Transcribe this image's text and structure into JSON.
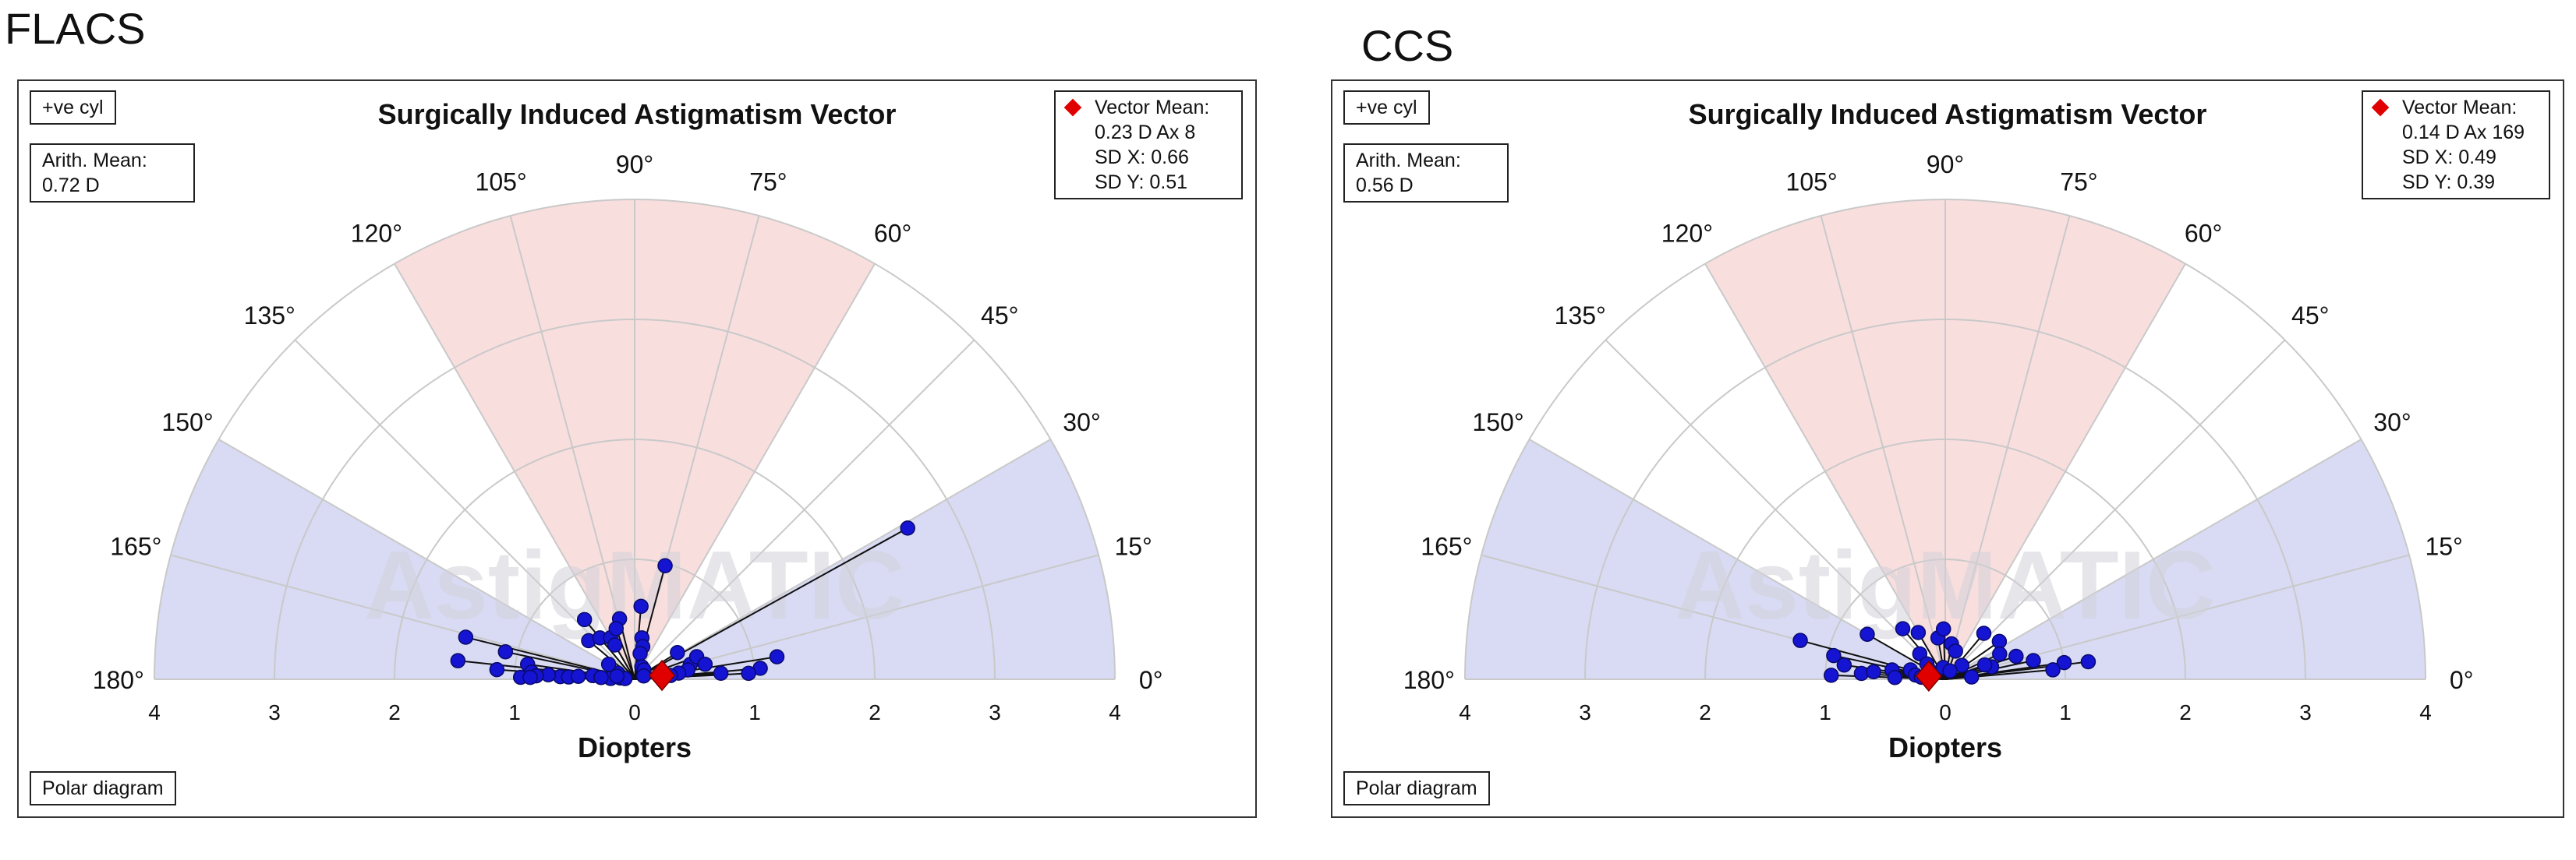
{
  "labels": {
    "left": "FLACS",
    "right": "CCS"
  },
  "colors": {
    "sector_vertical": "#f9dede",
    "sector_horizontal": "#d8dbf3",
    "grid": "#c9c9c9",
    "point": "#1414d2",
    "mean": "#e00000",
    "watermark": "#d2d2d8"
  },
  "chart_data": [
    {
      "type": "scatter",
      "projection": "polar-half",
      "title": "Surgically Induced Astigmatism Vector",
      "xlabel": "Diopters",
      "watermark": "AstigMATIC",
      "cyl_label": "+ve cyl",
      "arith_mean_label": "Arith. Mean:",
      "arith_mean_value": "0.72 D",
      "vector_mean_label": "Vector Mean:",
      "vector_mean_lines": [
        "0.23 D Ax 8",
        "SD X: 0.66",
        "SD Y: 0.51"
      ],
      "vector_mean_point": {
        "magnitude": 0.23,
        "axis": 8
      },
      "footer_label": "Polar diagram",
      "radius_max": 4,
      "x_ticks": [
        "4",
        "3",
        "2",
        "1",
        "0",
        "1",
        "2",
        "3",
        "4"
      ],
      "angle_ticks": [
        "0°",
        "15°",
        "30°",
        "45°",
        "60°",
        "75°",
        "90°",
        "105°",
        "120°",
        "135°",
        "150°",
        "165°",
        "180°"
      ],
      "points": [
        [
          0.42,
          32
        ],
        [
          0.98,
          75
        ],
        [
          0.61,
          85
        ],
        [
          0.35,
          80
        ],
        [
          0.28,
          76
        ],
        [
          0.22,
          78
        ],
        [
          0.12,
          60
        ],
        [
          0.11,
          45
        ],
        [
          0.08,
          20
        ],
        [
          0.48,
          15
        ],
        [
          0.55,
          20
        ],
        [
          0.6,
          12
        ],
        [
          0.45,
          10
        ],
        [
          0.37,
          8
        ],
        [
          0.3,
          6
        ],
        [
          0.15,
          160
        ],
        [
          0.25,
          150
        ],
        [
          0.5,
          140
        ],
        [
          0.45,
          130
        ],
        [
          0.4,
          120
        ],
        [
          1.45,
          166
        ],
        [
          1.1,
          168
        ],
        [
          0.9,
          172
        ],
        [
          1.48,
          174
        ],
        [
          1.15,
          176
        ],
        [
          0.35,
          175
        ],
        [
          0.2,
          178
        ],
        [
          0.12,
          175
        ],
        [
          0.62,
          178
        ],
        [
          0.72,
          177
        ],
        [
          0.86,
          176
        ],
        [
          0.95,
          179
        ],
        [
          0.55,
          178
        ],
        [
          0.82,
          178
        ],
        [
          0.87,
          179
        ],
        [
          0.47,
          177
        ],
        [
          0.28,
          177
        ],
        [
          0.08,
          176
        ],
        [
          0.15,
          170
        ],
        [
          1.2,
          9
        ],
        [
          1.05,
          5
        ],
        [
          0.95,
          3
        ],
        [
          0.72,
          4
        ],
        [
          2.6,
          29
        ],
        [
          0.33,
          120
        ],
        [
          0.52,
          104
        ],
        [
          0.45,
          110
        ],
        [
          0.65,
          130
        ]
      ]
    },
    {
      "type": "scatter",
      "projection": "polar-half",
      "title": "Surgically Induced Astigmatism Vector",
      "xlabel": "Diopters",
      "watermark": "AstigMATIC",
      "cyl_label": "+ve cyl",
      "arith_mean_label": "Arith. Mean:",
      "arith_mean_value": "0.56 D",
      "vector_mean_label": "Vector Mean:",
      "vector_mean_lines": [
        "0.14 D Ax 169",
        "SD X: 0.49",
        "SD Y: 0.39"
      ],
      "vector_mean_point": {
        "magnitude": 0.14,
        "axis": 169
      },
      "footer_label": "Polar diagram",
      "radius_max": 4,
      "x_ticks": [
        "4",
        "3",
        "2",
        "1",
        "0",
        "1",
        "2",
        "3",
        "4"
      ],
      "angle_ticks": [
        "0°",
        "15°",
        "30°",
        "45°",
        "60°",
        "75°",
        "90°",
        "105°",
        "120°",
        "135°",
        "150°",
        "165°",
        "180°"
      ],
      "points": [
        [
          1.25,
          165
        ],
        [
          0.95,
          168
        ],
        [
          0.75,
          150
        ],
        [
          0.55,
          130
        ],
        [
          0.45,
          120
        ],
        [
          0.35,
          100
        ],
        [
          0.42,
          92
        ],
        [
          0.3,
          80
        ],
        [
          0.25,
          70
        ],
        [
          0.5,
          50
        ],
        [
          0.55,
          35
        ],
        [
          0.5,
          25
        ],
        [
          0.4,
          15
        ],
        [
          0.75,
          12
        ],
        [
          1.0,
          8
        ],
        [
          1.2,
          7
        ],
        [
          0.3,
          135
        ],
        [
          0.2,
          140
        ],
        [
          0.15,
          150
        ],
        [
          0.95,
          178
        ],
        [
          0.7,
          176
        ],
        [
          0.85,
          172
        ],
        [
          0.6,
          174
        ],
        [
          0.45,
          170
        ],
        [
          0.3,
          165
        ],
        [
          0.25,
          172
        ],
        [
          0.42,
          178
        ],
        [
          0.2,
          175
        ],
        [
          0.12,
          160
        ],
        [
          0.1,
          100
        ],
        [
          0.18,
          40
        ],
        [
          0.35,
          20
        ],
        [
          0.62,
          18
        ],
        [
          0.22,
          5
        ],
        [
          0.9,
          5
        ],
        [
          0.08,
          60
        ]
      ]
    }
  ]
}
